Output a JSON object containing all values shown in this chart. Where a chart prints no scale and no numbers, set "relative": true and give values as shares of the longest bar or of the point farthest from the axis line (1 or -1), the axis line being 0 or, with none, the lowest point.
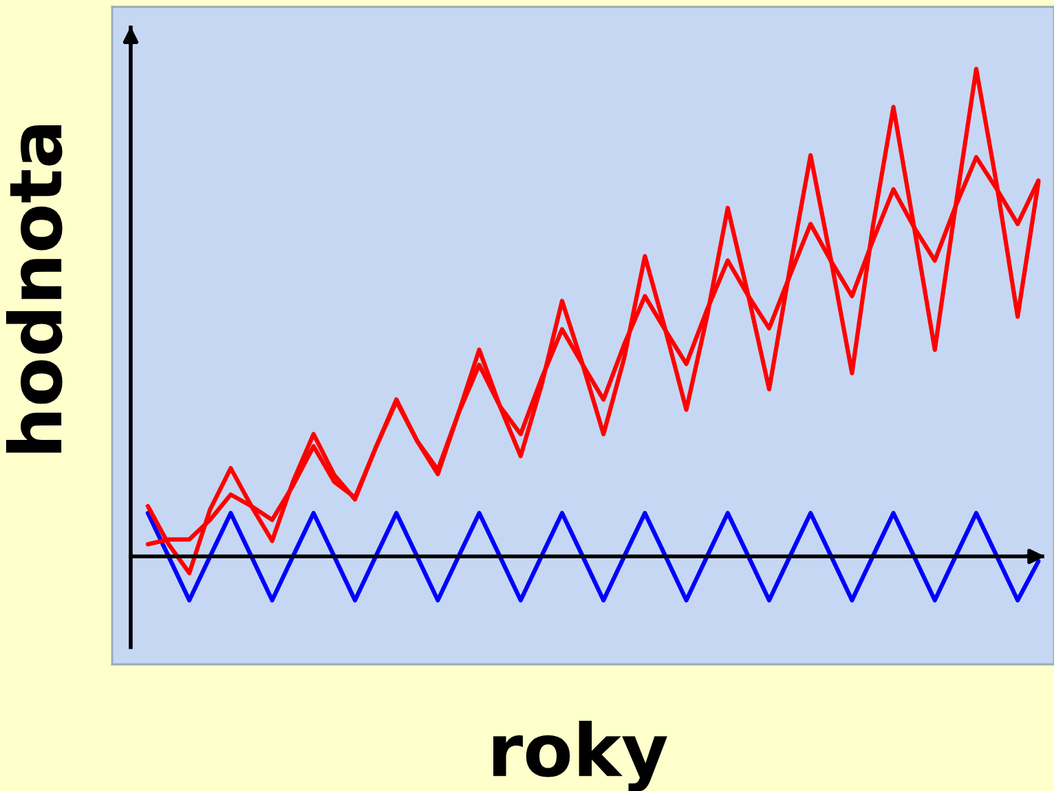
{
  "chart_data": {
    "type": "line",
    "xlabel": "roky",
    "ylabel": "hodnota",
    "relative": true,
    "categories": [
      null,
      null,
      null,
      null,
      null,
      null,
      null,
      null,
      null,
      null,
      null,
      null,
      null,
      null,
      null,
      null,
      null,
      null,
      null,
      null,
      null,
      null,
      null,
      null,
      null,
      null,
      null,
      null,
      null,
      null,
      null,
      null,
      null,
      null,
      null,
      null,
      null,
      null,
      null,
      null,
      null,
      null,
      null,
      null
    ],
    "series": [
      {
        "color": "#0000ff",
        "values": [
          0.089,
          0.0,
          -0.09,
          0.0,
          0.089,
          0.0,
          -0.09,
          0.0,
          0.089,
          0.0,
          -0.09,
          0.0,
          0.089,
          0.0,
          -0.09,
          0.0,
          0.089,
          0.0,
          -0.09,
          0.0,
          0.089,
          0.0,
          -0.09,
          0.0,
          0.089,
          0.0,
          -0.09,
          0.0,
          0.089,
          0.0,
          -0.09,
          0.0,
          0.089,
          0.0,
          -0.09,
          0.0,
          0.089,
          0.0,
          -0.09,
          0.0,
          0.089,
          0.0,
          -0.09,
          -0.01
        ]
      },
      {
        "color": "#ff0000",
        "values": [
          0.103,
          0.025,
          -0.034,
          0.096,
          0.181,
          0.103,
          0.032,
          0.153,
          0.251,
          0.167,
          0.117,
          0.223,
          0.322,
          0.237,
          0.169,
          0.294,
          0.424,
          0.308,
          0.206,
          0.35,
          0.524,
          0.393,
          0.251,
          0.407,
          0.616,
          0.463,
          0.301,
          0.492,
          0.715,
          0.534,
          0.343,
          0.59,
          0.823,
          0.605,
          0.376,
          0.675,
          0.922,
          0.675,
          0.424,
          0.718,
          1.0,
          0.76,
          0.492,
          0.767
        ]
      },
      {
        "color": "#ff0000",
        "values": [
          0.025,
          0.035,
          0.035,
          0.075,
          0.127,
          0.103,
          0.075,
          0.145,
          0.226,
          0.153,
          0.121,
          0.223,
          0.318,
          0.237,
          0.178,
          0.294,
          0.393,
          0.308,
          0.251,
          0.364,
          0.466,
          0.393,
          0.322,
          0.435,
          0.534,
          0.463,
          0.395,
          0.506,
          0.607,
          0.534,
          0.468,
          0.576,
          0.682,
          0.605,
          0.534,
          0.647,
          0.753,
          0.675,
          0.607,
          0.718,
          0.819,
          0.753,
          0.682,
          0.771
        ]
      }
    ]
  }
}
